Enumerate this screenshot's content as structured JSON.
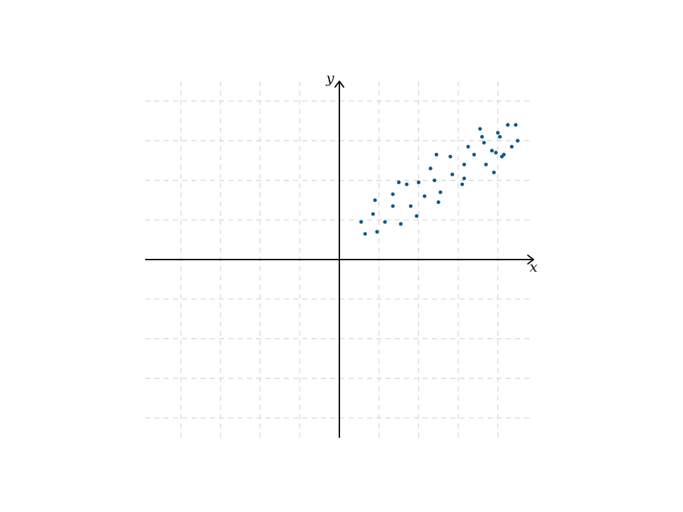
{
  "chart_data": {
    "type": "scatter",
    "title": "",
    "xlabel": "x",
    "ylabel": "y",
    "xlim": [
      -4.9,
      4.9
    ],
    "ylim": [
      -4.5,
      4.5
    ],
    "grid": true,
    "tick_labels": false,
    "colors": {
      "points": "#0b5a8c",
      "axes": "#111111",
      "grid": "#d4d4d4"
    },
    "series": [
      {
        "points": [
          [
            0.55,
            0.95
          ],
          [
            0.65,
            0.65
          ],
          [
            0.85,
            1.15
          ],
          [
            0.9,
            1.5
          ],
          [
            0.95,
            0.7
          ],
          [
            1.15,
            0.95
          ],
          [
            1.35,
            1.35
          ],
          [
            1.35,
            1.65
          ],
          [
            1.5,
            1.95
          ],
          [
            1.55,
            0.9
          ],
          [
            1.7,
            1.9
          ],
          [
            1.8,
            1.35
          ],
          [
            1.95,
            1.1
          ],
          [
            2.0,
            1.95
          ],
          [
            2.15,
            1.6
          ],
          [
            2.3,
            2.3
          ],
          [
            2.4,
            2.0
          ],
          [
            2.45,
            2.65
          ],
          [
            2.5,
            1.45
          ],
          [
            2.55,
            1.7
          ],
          [
            2.8,
            2.6
          ],
          [
            2.85,
            2.15
          ],
          [
            3.1,
            1.9
          ],
          [
            3.15,
            2.05
          ],
          [
            3.15,
            2.4
          ],
          [
            3.25,
            2.85
          ],
          [
            3.4,
            2.65
          ],
          [
            3.55,
            3.3
          ],
          [
            3.6,
            3.1
          ],
          [
            3.65,
            2.95
          ],
          [
            3.7,
            2.4
          ],
          [
            3.85,
            2.75
          ],
          [
            3.9,
            2.2
          ],
          [
            3.95,
            2.7
          ],
          [
            4.0,
            3.2
          ],
          [
            4.05,
            3.1
          ],
          [
            4.1,
            2.6
          ],
          [
            4.15,
            2.65
          ],
          [
            4.25,
            3.4
          ],
          [
            4.35,
            2.85
          ],
          [
            4.45,
            3.4
          ],
          [
            4.5,
            3.0
          ]
        ]
      }
    ]
  }
}
